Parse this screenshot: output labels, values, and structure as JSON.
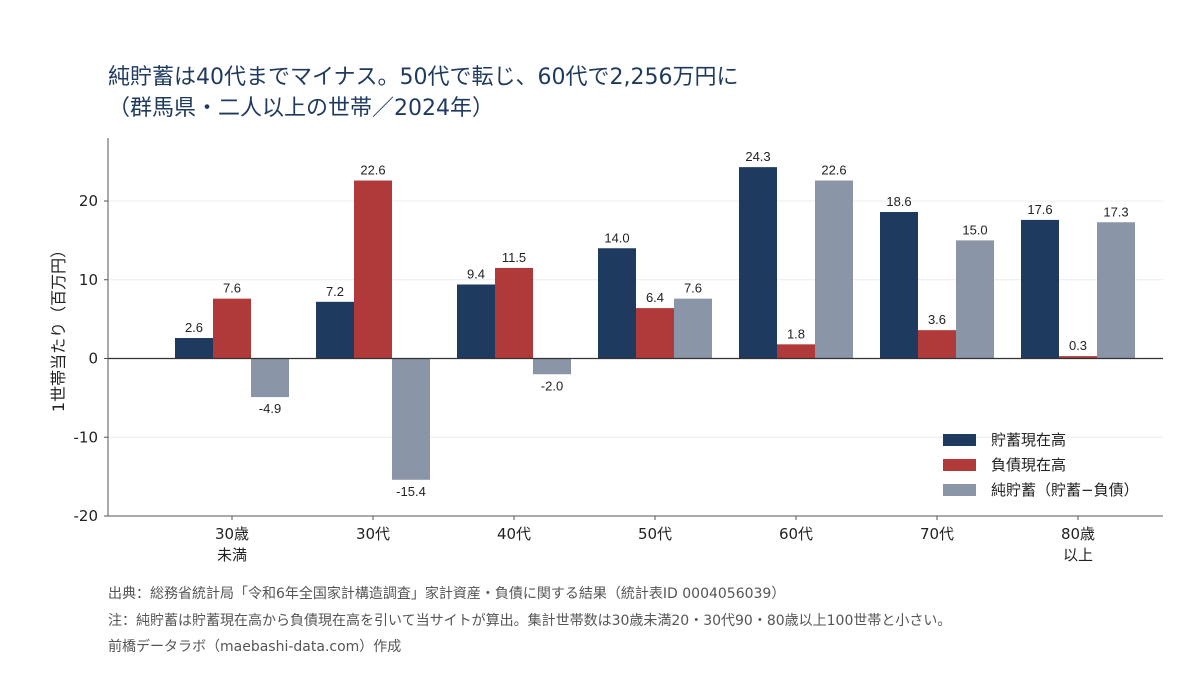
{
  "title_line1": "純貯蓄は40代までマイナス。50代で転じ、60代で2,256万円に",
  "title_line2": "（群馬県・二人以上の世帯／2024年）",
  "chart_data": {
    "type": "bar",
    "categories": [
      [
        "30歳",
        "未満"
      ],
      [
        "30代"
      ],
      [
        "40代"
      ],
      [
        "50代"
      ],
      [
        "60代"
      ],
      [
        "70代"
      ],
      [
        "80歳",
        "以上"
      ]
    ],
    "series": [
      {
        "name": "貯蓄現在高",
        "color": "#1f3a5f",
        "values": [
          2.6,
          7.2,
          9.4,
          14.0,
          24.3,
          18.6,
          17.6
        ],
        "labels": [
          "2.6",
          "7.2",
          "9.4",
          "14.0",
          "24.3",
          "18.6",
          "17.6"
        ]
      },
      {
        "name": "負債現在高",
        "color": "#b03a3a",
        "values": [
          7.6,
          22.6,
          11.5,
          6.4,
          1.8,
          3.6,
          0.3
        ],
        "labels": [
          "7.6",
          "22.6",
          "11.5",
          "6.4",
          "1.8",
          "3.6",
          "0.3"
        ]
      },
      {
        "name": "純貯蓄（貯蓄−負債）",
        "color": "#8a95a8",
        "values": [
          -4.9,
          -15.4,
          -2.0,
          7.6,
          22.6,
          15.0,
          17.3
        ],
        "labels": [
          "-4.9",
          "-15.4",
          "-2.0",
          "7.6",
          "22.6",
          "15.0",
          "17.3"
        ]
      }
    ],
    "ylabel": "1世帯当たり（百万円）",
    "ylim": [
      -20,
      28
    ],
    "yticks": [
      -20,
      -10,
      0,
      10,
      20
    ],
    "grid": true,
    "legend_position": "bottom-right"
  },
  "notes": [
    "出典：総務省統計局「令和6年全国家計構造調査」家計資産・負債に関する結果（統計表ID 0004056039）",
    "注：純貯蓄は貯蓄現在高から負債現在高を引いて当サイトが算出。集計世帯数は30歳未満20・30代90・80歳以上100世帯と小さい。",
    "前橋データラボ（maebashi-data.com）作成"
  ]
}
